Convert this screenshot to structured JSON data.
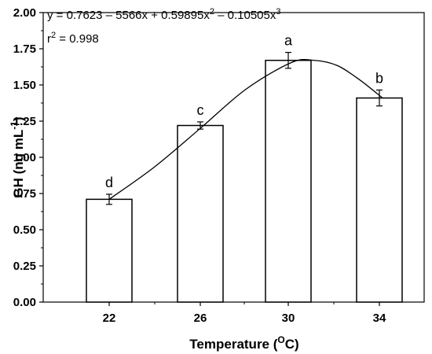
{
  "chart_data": {
    "type": "bar",
    "categories": [
      "22",
      "26",
      "30",
      "34"
    ],
    "values": [
      0.71,
      1.22,
      1.67,
      1.41
    ],
    "error": [
      0.035,
      0.025,
      0.055,
      0.055
    ],
    "significance_letters": [
      "d",
      "c",
      "a",
      "b"
    ],
    "ylim": [
      0.0,
      2.0
    ],
    "yticks": [
      "0.00",
      "0.25",
      "0.50",
      "0.75",
      "1.00",
      "1.25",
      "1.50",
      "1.75",
      "2.00"
    ],
    "ylabel": "GH (ng mL",
    "ylabel_sup": "-1",
    "ylabel_close": ")",
    "xlabel": "Temperature (",
    "xlabel_sup": "O",
    "xlabel_close": "C)",
    "fit": {
      "type": "cubic",
      "equation_parts": [
        "y = 0.7623 – 5566x + 0.59895x",
        "2",
        " – 0.10505x",
        "3"
      ],
      "r2_prefix": "r",
      "r2_sup": "2",
      "r2_value": " = 0.998",
      "curve_points": [
        [
          22,
          0.71
        ],
        [
          24,
          0.935
        ],
        [
          26,
          1.2
        ],
        [
          28,
          1.47
        ],
        [
          30,
          1.655
        ],
        [
          31,
          1.67
        ],
        [
          32,
          1.635
        ],
        [
          33,
          1.535
        ],
        [
          34,
          1.41
        ]
      ]
    },
    "grid": false,
    "legend": "none"
  }
}
